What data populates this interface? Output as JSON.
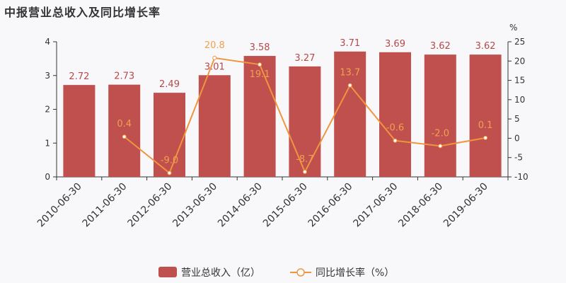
{
  "title": "中报营业总收入及同比增长率",
  "colors": {
    "bar": "#c0504d",
    "line": "#f0953f",
    "background": "#f8f8fa"
  },
  "chart_data": {
    "type": "bar",
    "title": "中报营业总收入及同比增长率",
    "categories": [
      "2010-06-30",
      "2011-06-30",
      "2012-06-30",
      "2013-06-30",
      "2014-06-30",
      "2015-06-30",
      "2016-06-30",
      "2017-06-30",
      "2018-06-30",
      "2019-06-30"
    ],
    "series": [
      {
        "name": "营业总收入（亿）",
        "type": "bar",
        "axis": "left",
        "values": [
          2.72,
          2.73,
          2.49,
          3.01,
          3.58,
          3.27,
          3.71,
          3.69,
          3.62,
          3.62
        ],
        "labels": [
          "2.72",
          "2.73",
          "2.49",
          "3.01",
          "3.58",
          "3.27",
          "3.71",
          "3.69",
          "3.62",
          "3.62"
        ]
      },
      {
        "name": "同比增长率（%）",
        "type": "line",
        "axis": "right",
        "values": [
          null,
          0.4,
          -9.0,
          20.8,
          19.1,
          -8.7,
          13.7,
          -0.6,
          -2.0,
          0.1
        ],
        "labels": [
          "",
          "0.4",
          "-9.0",
          "20.8",
          "19.1",
          "-8.7",
          "13.7",
          "-0.6",
          "-2.0",
          "0.1"
        ]
      }
    ],
    "ylim_left": [
      0,
      4
    ],
    "yticks_left": [
      "0",
      "1",
      "2",
      "3",
      "4"
    ],
    "ylim_right": [
      -10,
      25
    ],
    "yticks_right": [
      "-10",
      "-5",
      "0",
      "5",
      "10",
      "15",
      "20",
      "25"
    ],
    "ylabel_right": "%",
    "grid": false,
    "legend": "bottom-center"
  }
}
